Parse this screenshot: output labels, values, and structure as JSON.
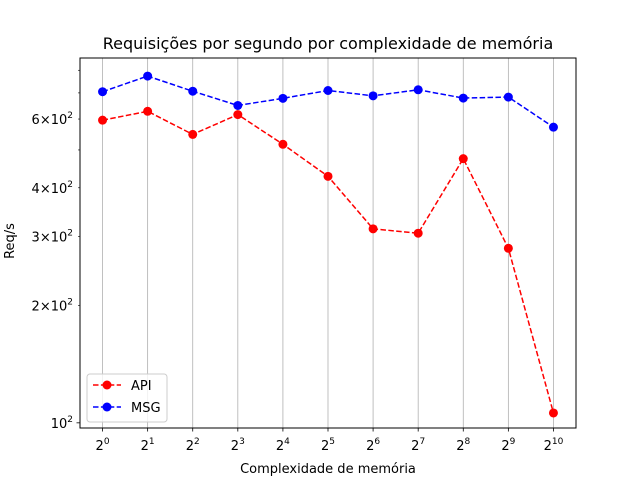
{
  "chart_data": {
    "type": "line",
    "title": "Requisições por segundo por complexidade de memória",
    "xlabel": "Complexidade de memória",
    "ylabel": "Req/s",
    "x_base": "2",
    "x_exponents": [
      "0",
      "1",
      "2",
      "3",
      "4",
      "5",
      "6",
      "7",
      "8",
      "9",
      "10"
    ],
    "x": [
      0,
      1,
      2,
      3,
      4,
      5,
      6,
      7,
      8,
      9,
      10
    ],
    "yscale": "log",
    "ylim": [
      97,
      860
    ],
    "y_major_ticks": [
      {
        "value": 100,
        "base": "10",
        "exp": "2"
      }
    ],
    "y_minor_ticks": [
      {
        "value": 200,
        "mult": "2",
        "base": "10",
        "exp": "2"
      },
      {
        "value": 300,
        "mult": "3",
        "base": "10",
        "exp": "2"
      },
      {
        "value": 400,
        "mult": "4",
        "base": "10",
        "exp": "2"
      },
      {
        "value": 600,
        "mult": "6",
        "base": "10",
        "exp": "2"
      }
    ],
    "y_unlabeled_minor_ticks": [
      500,
      700,
      800
    ],
    "grid": "x-major",
    "legend_position": "lower-left",
    "series": [
      {
        "name": "API",
        "color": "#ff0000",
        "linestyle": "dashed",
        "marker": "circle",
        "values": [
          596,
          628,
          548,
          616,
          517,
          428,
          314,
          306,
          475,
          280,
          106
        ]
      },
      {
        "name": "MSG",
        "color": "#0000ff",
        "linestyle": "dashed",
        "marker": "circle",
        "values": [
          705,
          773,
          707,
          650,
          678,
          710,
          688,
          713,
          679,
          683,
          572
        ]
      }
    ]
  }
}
